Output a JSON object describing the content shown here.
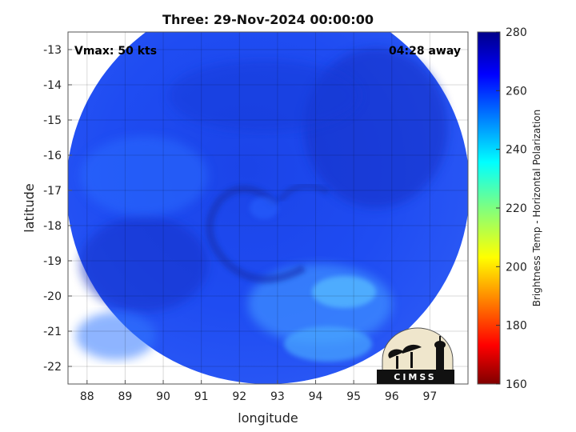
{
  "chart_data": {
    "type": "heatmap",
    "title": "Three: 29-Nov-2024 00:00:00",
    "xlabel": "longitude",
    "ylabel": "latitude",
    "xlim": [
      87.5,
      98.0
    ],
    "ylim": [
      -22.5,
      -12.5
    ],
    "x_ticks": [
      88,
      89,
      90,
      91,
      92,
      93,
      94,
      95,
      96,
      97
    ],
    "y_ticks": [
      -13,
      -14,
      -15,
      -16,
      -17,
      -18,
      -19,
      -20,
      -21,
      -22
    ],
    "grid": true,
    "colorbar": {
      "label": "Brightness Temp - Horizontal Polarization",
      "range": [
        160,
        280
      ],
      "ticks": [
        280,
        260,
        240,
        220,
        200,
        180,
        160
      ],
      "colormap": "jet"
    },
    "annotations": {
      "vmax": "Vmax: 50 kts",
      "time_away": "04:28 away"
    }
  },
  "logo": {
    "text": "CIMSS"
  },
  "colors": {
    "background_outside_swath": "#ffffff",
    "dominant": "#1a3ff0",
    "cold_patch": "#4aa8ff"
  }
}
